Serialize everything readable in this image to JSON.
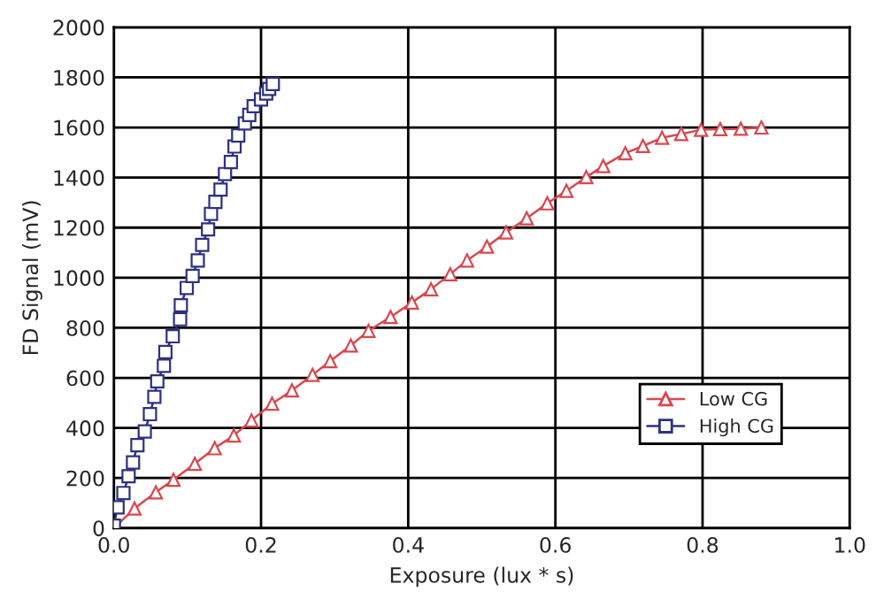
{
  "chart_data": {
    "type": "line",
    "xlabel": "Exposure (lux * s)",
    "ylabel": "FD Signal (mV)",
    "xlim": [
      0,
      1.0
    ],
    "ylim": [
      0,
      2000
    ],
    "xticks": [
      {
        "value": 0,
        "label": "0.0"
      },
      0.2,
      0.4,
      0.6,
      0.8,
      {
        "value": 1.0,
        "label": "1.0"
      }
    ],
    "yticks": [
      0,
      200,
      400,
      600,
      800,
      1000,
      1200,
      1400,
      1600,
      1800,
      2000
    ],
    "grid": true,
    "legend": "lower right",
    "line_style": "solid",
    "series": [
      {
        "name": "Low CG",
        "color": "#d9474f",
        "marker": "triangle",
        "x": [
          0,
          0.028,
          0.057,
          0.081,
          0.11,
          0.137,
          0.163,
          0.187,
          0.215,
          0.242,
          0.27,
          0.294,
          0.322,
          0.346,
          0.376,
          0.405,
          0.431,
          0.457,
          0.48,
          0.507,
          0.533,
          0.561,
          0.589,
          0.615,
          0.642,
          0.665,
          0.695,
          0.719,
          0.745,
          0.771,
          0.798,
          0.824,
          0.852,
          0.88
        ],
        "values": [
          0,
          78,
          143,
          193,
          257,
          319,
          370,
          430,
          497,
          550,
          612,
          667,
          729,
          788,
          843,
          901,
          954,
          1014,
          1069,
          1124,
          1181,
          1237,
          1297,
          1347,
          1402,
          1446,
          1497,
          1526,
          1559,
          1574,
          1591,
          1593,
          1595,
          1600
        ]
      },
      {
        "name": "High CG",
        "color": "#2e3180",
        "marker": "square",
        "x": [
          0,
          0.005,
          0.013,
          0.02,
          0.026,
          0.032,
          0.042,
          0.049,
          0.055,
          0.059,
          0.068,
          0.07,
          0.08,
          0.09,
          0.091,
          0.099,
          0.107,
          0.114,
          0.12,
          0.128,
          0.132,
          0.138,
          0.145,
          0.151,
          0.159,
          0.164,
          0.169,
          0.178,
          0.184,
          0.19,
          0.2,
          0.207,
          0.211,
          0.216
        ],
        "values": [
          10,
          83,
          140,
          207,
          262,
          331,
          386,
          455,
          524,
          586,
          648,
          703,
          766,
          834,
          890,
          959,
          1007,
          1069,
          1131,
          1193,
          1255,
          1303,
          1352,
          1414,
          1462,
          1524,
          1568,
          1616,
          1650,
          1685,
          1712,
          1736,
          1754,
          1774
        ]
      }
    ]
  }
}
